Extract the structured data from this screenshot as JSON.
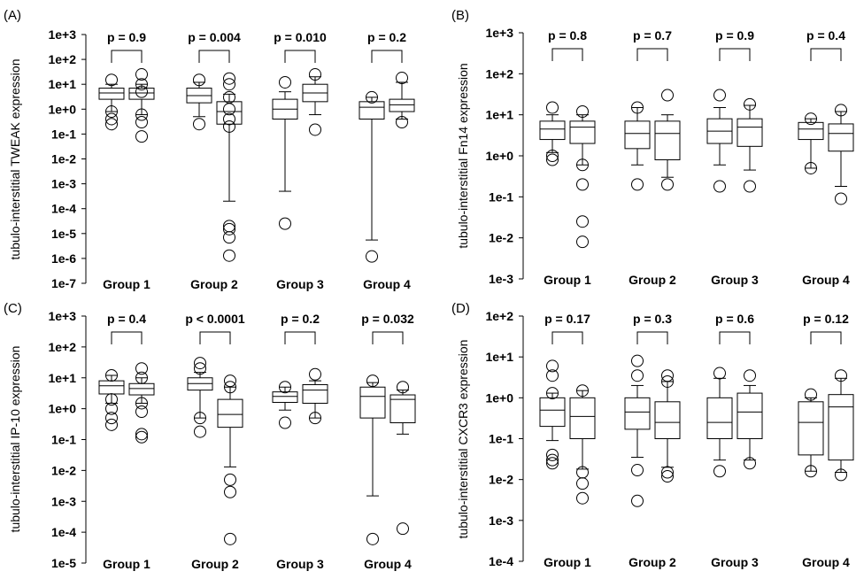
{
  "chart_data": [
    {
      "type": "boxplot",
      "panel": "(A)",
      "ylabel": "tubulo-interstitial TWEAK expression",
      "yscale": "log",
      "ylim": [
        1e-07,
        1000
      ],
      "yticks": [
        "1e-7",
        "1e-6",
        "1e-5",
        "1e-4",
        "1e-3",
        "1e-2",
        "1e-1",
        "1e+0",
        "1e+1",
        "1e+2",
        "1e+3"
      ],
      "categories": [
        "Group 1",
        "Group 2",
        "Group 3",
        "Group 4"
      ],
      "pvalues": [
        "p = 0.9",
        "p = 0.004",
        "p = 0.010",
        "p = 0.2"
      ],
      "boxes": [
        [
          {
            "wlo": 0.8,
            "q1": 2.5,
            "med": 4.5,
            "q3": 7,
            "whi": 10,
            "out": [
              0.25,
              0.4,
              0.8,
              15
            ]
          },
          {
            "wlo": 0.6,
            "q1": 2.5,
            "med": 4.5,
            "q3": 7,
            "whi": 10,
            "out": [
              0.08,
              0.3,
              0.6,
              5,
              10,
              25
            ]
          }
        ],
        [
          {
            "wlo": 0.5,
            "q1": 1.8,
            "med": 3.5,
            "q3": 7,
            "whi": 12,
            "out": [
              0.25,
              15
            ]
          },
          {
            "wlo": 0.0002,
            "q1": 0.25,
            "med": 0.8,
            "q3": 2,
            "whi": 4,
            "out": [
              1.3e-06,
              7e-06,
              1.5e-05,
              2e-05,
              0.2,
              0.4,
              1,
              3,
              10,
              17
            ]
          }
        ],
        [
          {
            "wlo": 0.0005,
            "q1": 0.4,
            "med": 1,
            "q3": 2.5,
            "whi": 5,
            "out": [
              2.5e-05,
              12
            ]
          },
          {
            "wlo": 0.6,
            "q1": 2,
            "med": 4.5,
            "q3": 10,
            "whi": 20,
            "out": [
              0.15,
              25
            ]
          }
        ],
        [
          {
            "wlo": 5.5e-06,
            "q1": 0.4,
            "med": 1.2,
            "q3": 2,
            "whi": 3,
            "out": [
              1.2e-06,
              3
            ]
          },
          {
            "wlo": 0.4,
            "q1": 0.8,
            "med": 1.5,
            "q3": 2.5,
            "whi": 12,
            "out": [
              0.3,
              18
            ]
          }
        ]
      ]
    },
    {
      "type": "boxplot",
      "panel": "(B)",
      "ylabel": "tubulo-interstitial Fn14 expression",
      "yscale": "log",
      "ylim": [
        0.001,
        1000
      ],
      "yticks": [
        "1e-3",
        "1e-2",
        "1e-1",
        "1e+0",
        "1e+1",
        "1e+2",
        "1e+3"
      ],
      "categories": [
        "Group 1",
        "Group 2",
        "Group 3",
        "Group 4"
      ],
      "pvalues": [
        "p = 0.8",
        "p = 0.7",
        "p = 0.9",
        "p = 0.4"
      ],
      "boxes": [
        [
          {
            "wlo": 1.2,
            "q1": 2.5,
            "med": 4.5,
            "q3": 7,
            "whi": 10,
            "out": [
              0.8,
              1,
              15
            ]
          },
          {
            "wlo": 0.6,
            "q1": 2,
            "med": 5,
            "q3": 7,
            "whi": 10,
            "out": [
              0.008,
              0.025,
              0.2,
              0.6,
              12
            ]
          }
        ],
        [
          {
            "wlo": 0.6,
            "q1": 1.5,
            "med": 3.5,
            "q3": 7,
            "whi": 15,
            "out": [
              0.2,
              15
            ]
          },
          {
            "wlo": 0.3,
            "q1": 0.8,
            "med": 3.5,
            "q3": 7,
            "whi": 10,
            "out": [
              0.2,
              30
            ]
          }
        ],
        [
          {
            "wlo": 0.6,
            "q1": 2,
            "med": 4,
            "q3": 8,
            "whi": 15,
            "out": [
              0.18,
              30
            ]
          },
          {
            "wlo": 0.45,
            "q1": 1.7,
            "med": 5,
            "q3": 8,
            "whi": 17,
            "out": [
              0.18,
              18
            ]
          }
        ],
        [
          {
            "wlo": 0.5,
            "q1": 2.5,
            "med": 4.5,
            "q3": 6.5,
            "whi": 8,
            "out": [
              0.5,
              8
            ]
          },
          {
            "wlo": 0.18,
            "q1": 1.3,
            "med": 3.5,
            "q3": 6,
            "whi": 12,
            "out": [
              0.09,
              13
            ]
          }
        ]
      ]
    },
    {
      "type": "boxplot",
      "panel": "(C)",
      "ylabel": "tubulo-interstitial IP-10 expression",
      "yscale": "log",
      "ylim": [
        1e-05,
        1000
      ],
      "yticks": [
        "1e-5",
        "1e-4",
        "1e-3",
        "1e-2",
        "1e-1",
        "1e+0",
        "1e+1",
        "1e+2",
        "1e+3"
      ],
      "categories": [
        "Group 1",
        "Group 2",
        "Group 3",
        "Group 4"
      ],
      "pvalues": [
        "p = 0.4",
        "p < 0.0001",
        "p = 0.2",
        "p = 0.032"
      ],
      "boxes": [
        [
          {
            "wlo": 1.5,
            "q1": 3,
            "med": 5.5,
            "q3": 8,
            "whi": 12,
            "out": [
              0.3,
              0.5,
              1,
              2,
              12
            ]
          },
          {
            "wlo": 1.5,
            "q1": 2.8,
            "med": 4.5,
            "q3": 6.5,
            "whi": 10,
            "out": [
              0.12,
              0.15,
              0.8,
              1.5,
              10,
              20
            ]
          }
        ],
        [
          {
            "wlo": 0.5,
            "q1": 4,
            "med": 6.5,
            "q3": 10,
            "whi": 15,
            "out": [
              0.18,
              0.5,
              20,
              30
            ]
          },
          {
            "wlo": 0.013,
            "q1": 0.25,
            "med": 0.65,
            "q3": 2,
            "whi": 5,
            "out": [
              6e-05,
              0.002,
              0.005,
              5,
              8
            ]
          }
        ],
        [
          {
            "wlo": 0.9,
            "q1": 1.6,
            "med": 2.5,
            "q3": 3.5,
            "whi": 5,
            "out": [
              0.35,
              5
            ]
          },
          {
            "wlo": 0.5,
            "q1": 1.5,
            "med": 4,
            "q3": 6,
            "whi": 8,
            "out": [
              0.5,
              13
            ]
          }
        ],
        [
          {
            "wlo": 0.0015,
            "q1": 0.5,
            "med": 2.5,
            "q3": 5,
            "whi": 7,
            "out": [
              6e-05,
              8
            ]
          },
          {
            "wlo": 0.15,
            "q1": 0.35,
            "med": 2,
            "q3": 2.8,
            "whi": 4,
            "out": [
              0.00013,
              5
            ]
          }
        ]
      ]
    },
    {
      "type": "boxplot",
      "panel": "(D)",
      "ylabel": "tubulo-interstitial CXCR3 expression",
      "yscale": "log",
      "ylim": [
        0.0001,
        100
      ],
      "yticks": [
        "1e-4",
        "1e-3",
        "1e-2",
        "1e-1",
        "1e+0",
        "1e+1",
        "1e+2"
      ],
      "categories": [
        "Group 1",
        "Group 2",
        "Group 3",
        "Group 4"
      ],
      "pvalues": [
        "p = 0.17",
        "p = 0.3",
        "p = 0.6",
        "p = 0.12"
      ],
      "boxes": [
        [
          {
            "wlo": 0.09,
            "q1": 0.2,
            "med": 0.5,
            "q3": 1,
            "whi": 1.3,
            "out": [
              0.025,
              0.03,
              0.04,
              1.3,
              3.5,
              6
            ]
          },
          {
            "wlo": 0.018,
            "q1": 0.1,
            "med": 0.35,
            "q3": 1,
            "whi": 1.5,
            "out": [
              0.0035,
              0.008,
              0.015,
              1.5
            ]
          }
        ],
        [
          {
            "wlo": 0.035,
            "q1": 0.17,
            "med": 0.45,
            "q3": 1,
            "whi": 2,
            "out": [
              0.003,
              0.017,
              3.5,
              8
            ]
          },
          {
            "wlo": 0.02,
            "q1": 0.1,
            "med": 0.25,
            "q3": 0.8,
            "whi": 2.5,
            "out": [
              0.012,
              0.015,
              2.5,
              3.5
            ]
          }
        ],
        [
          {
            "wlo": 0.03,
            "q1": 0.1,
            "med": 0.25,
            "q3": 1,
            "whi": 3,
            "out": [
              0.016,
              4
            ]
          },
          {
            "wlo": 0.03,
            "q1": 0.1,
            "med": 0.45,
            "q3": 1.3,
            "whi": 2,
            "out": [
              0.025,
              3.5
            ]
          }
        ],
        [
          {
            "wlo": 0.016,
            "q1": 0.04,
            "med": 0.25,
            "q3": 0.8,
            "whi": 1,
            "out": [
              0.016,
              1.2
            ]
          },
          {
            "wlo": 0.015,
            "q1": 0.03,
            "med": 0.6,
            "q3": 1.2,
            "whi": 3,
            "out": [
              0.013,
              3.5
            ]
          }
        ]
      ]
    }
  ]
}
